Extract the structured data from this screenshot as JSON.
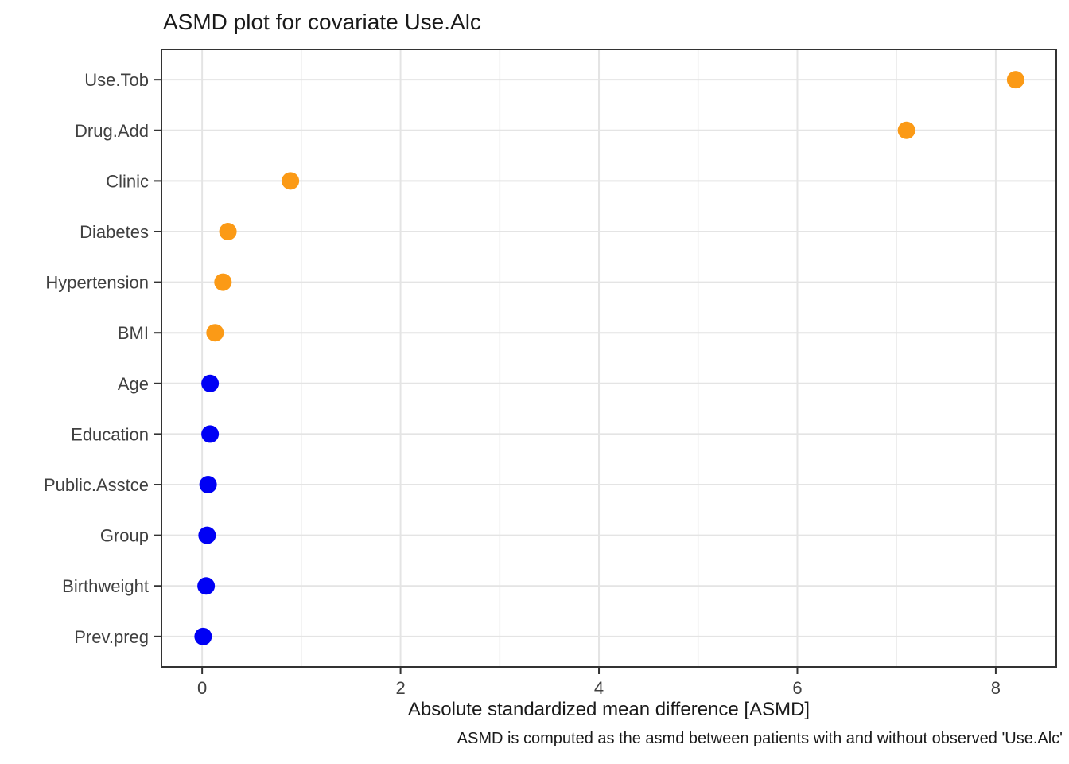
{
  "chart_data": {
    "type": "scatter",
    "subtype": "cleveland-dot-plot",
    "title": "ASMD plot for covariate Use.Alc",
    "xlabel": "Absolute standardized mean difference [ASMD]",
    "ylabel": "",
    "caption": "ASMD is computed as the asmd between patients with and without observed 'Use.Alc'",
    "categories": [
      "Use.Tob",
      "Drug.Add",
      "Clinic",
      "Diabetes",
      "Hypertension",
      "BMI",
      "Age",
      "Education",
      "Public.Asstce",
      "Group",
      "Birthweight",
      "Prev.preg"
    ],
    "values": [
      8.2,
      7.1,
      0.89,
      0.26,
      0.21,
      0.13,
      0.08,
      0.08,
      0.06,
      0.05,
      0.04,
      0.01
    ],
    "point_colors": [
      "#FB9A16",
      "#FB9A16",
      "#FB9A16",
      "#FB9A16",
      "#FB9A16",
      "#FB9A16",
      "#0000F5",
      "#0000F5",
      "#0000F5",
      "#0000F5",
      "#0000F5",
      "#0000F5"
    ],
    "x_ticks": [
      0,
      2,
      4,
      6,
      8
    ],
    "x_minor_gridlines": [
      1,
      3,
      5,
      7
    ],
    "xlim": [
      -0.41,
      8.61
    ],
    "grid": true,
    "legend": "none",
    "style": {
      "highlight_color": "#FB9A16",
      "base_color": "#0000F5",
      "panel_border_color": "#333333",
      "major_grid_color": "#E4E4E4",
      "minor_grid_color": "#EDEDED",
      "axis_text_color": "#404040",
      "tick_color": "#333333",
      "background_color": "#FFFFFF"
    }
  }
}
